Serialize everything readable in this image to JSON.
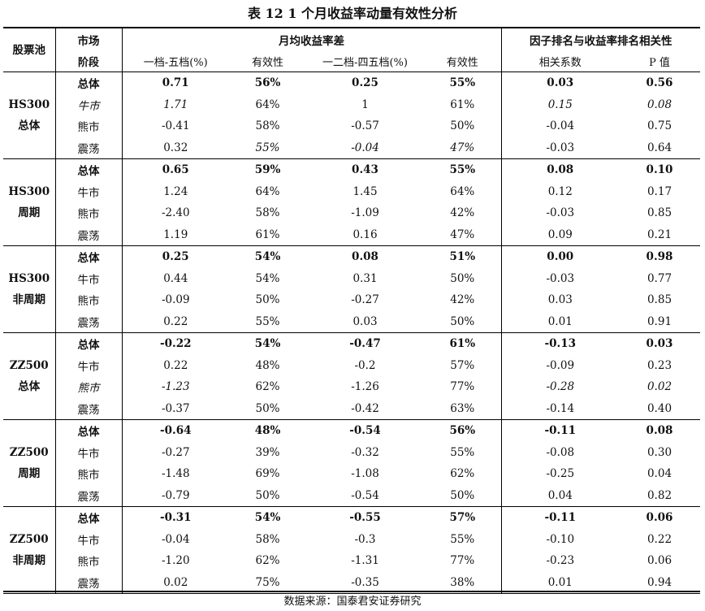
{
  "title": "表 12 1 个月收益率动量有效性分析",
  "header": {
    "pool": "股票池",
    "stage_line1": "市场",
    "stage_line2": "阶段",
    "group_spread": "月均收益率差",
    "group_corr": "因子排名与收益率排名相关性",
    "col_spread1": "一档-五档(%)",
    "col_eff1": "有效性",
    "col_spread2": "一二档-四五档(%)",
    "col_eff2": "有效性",
    "col_corr": "相关系数",
    "col_p": "P 值"
  },
  "groups": [
    {
      "pool_line1": "HS300",
      "pool_line2": "总体",
      "rows": [
        {
          "stage": "总体",
          "v": [
            "0.71",
            "56%",
            "0.25",
            "55%",
            "0.03",
            "0.56"
          ]
        },
        {
          "stage": "牛市",
          "v": [
            "1.71",
            "64%",
            "1",
            "61%",
            "0.15",
            "0.08"
          ]
        },
        {
          "stage": "熊市",
          "v": [
            "-0.41",
            "58%",
            "-0.57",
            "50%",
            "-0.04",
            "0.75"
          ]
        },
        {
          "stage": "震荡",
          "v": [
            "0.32",
            "55%",
            "-0.04",
            "47%",
            "-0.03",
            "0.64"
          ]
        }
      ]
    },
    {
      "pool_line1": "HS300",
      "pool_line2": "周期",
      "rows": [
        {
          "stage": "总体",
          "v": [
            "0.65",
            "59%",
            "0.43",
            "55%",
            "0.08",
            "0.10"
          ]
        },
        {
          "stage": "牛市",
          "v": [
            "1.24",
            "64%",
            "1.45",
            "64%",
            "0.12",
            "0.17"
          ]
        },
        {
          "stage": "熊市",
          "v": [
            "-2.40",
            "58%",
            "-1.09",
            "42%",
            "-0.03",
            "0.85"
          ]
        },
        {
          "stage": "震荡",
          "v": [
            "1.19",
            "61%",
            "0.16",
            "47%",
            "0.09",
            "0.21"
          ]
        }
      ]
    },
    {
      "pool_line1": "HS300",
      "pool_line2": "非周期",
      "rows": [
        {
          "stage": "总体",
          "v": [
            "0.25",
            "54%",
            "0.08",
            "51%",
            "0.00",
            "0.98"
          ]
        },
        {
          "stage": "牛市",
          "v": [
            "0.44",
            "54%",
            "0.31",
            "50%",
            "-0.03",
            "0.77"
          ]
        },
        {
          "stage": "熊市",
          "v": [
            "-0.09",
            "50%",
            "-0.27",
            "42%",
            "0.03",
            "0.85"
          ]
        },
        {
          "stage": "震荡",
          "v": [
            "0.22",
            "55%",
            "0.03",
            "50%",
            "0.01",
            "0.91"
          ]
        }
      ]
    },
    {
      "pool_line1": "ZZ500",
      "pool_line2": "总体",
      "rows": [
        {
          "stage": "总体",
          "v": [
            "-0.22",
            "54%",
            "-0.47",
            "61%",
            "-0.13",
            "0.03"
          ]
        },
        {
          "stage": "牛市",
          "v": [
            "0.22",
            "48%",
            "-0.2",
            "57%",
            "-0.09",
            "0.23"
          ]
        },
        {
          "stage": "熊市",
          "v": [
            "-1.23",
            "62%",
            "-1.26",
            "77%",
            "-0.28",
            "0.02"
          ]
        },
        {
          "stage": "震荡",
          "v": [
            "-0.37",
            "50%",
            "-0.42",
            "63%",
            "-0.14",
            "0.40"
          ]
        }
      ]
    },
    {
      "pool_line1": "ZZ500",
      "pool_line2": "周期",
      "rows": [
        {
          "stage": "总体",
          "v": [
            "-0.64",
            "48%",
            "-0.54",
            "56%",
            "-0.11",
            "0.08"
          ]
        },
        {
          "stage": "牛市",
          "v": [
            "-0.27",
            "39%",
            "-0.32",
            "55%",
            "-0.08",
            "0.30"
          ]
        },
        {
          "stage": "熊市",
          "v": [
            "-1.48",
            "69%",
            "-1.08",
            "62%",
            "-0.25",
            "0.04"
          ]
        },
        {
          "stage": "震荡",
          "v": [
            "-0.79",
            "50%",
            "-0.54",
            "50%",
            "0.04",
            "0.82"
          ]
        }
      ]
    },
    {
      "pool_line1": "ZZ500",
      "pool_line2": "非周期",
      "rows": [
        {
          "stage": "总体",
          "v": [
            "-0.31",
            "54%",
            "-0.55",
            "57%",
            "-0.11",
            "0.06"
          ]
        },
        {
          "stage": "牛市",
          "v": [
            "-0.04",
            "58%",
            "-0.3",
            "55%",
            "-0.10",
            "0.22"
          ]
        },
        {
          "stage": "熊市",
          "v": [
            "-1.20",
            "62%",
            "-1.31",
            "77%",
            "-0.23",
            "0.06"
          ]
        },
        {
          "stage": "震荡",
          "v": [
            "0.02",
            "75%",
            "-0.35",
            "38%",
            "0.01",
            "0.94"
          ]
        }
      ]
    }
  ],
  "source": "数据来源：国泰君安证券研究"
}
